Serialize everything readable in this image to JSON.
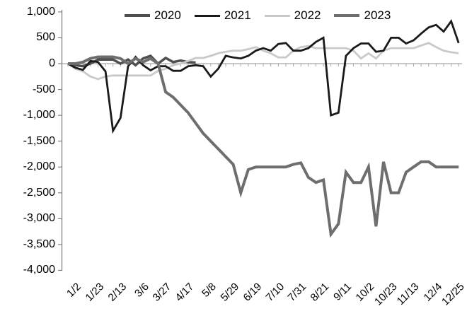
{
  "chart_data": {
    "type": "line",
    "title": "",
    "xlabel": "",
    "ylabel": "",
    "ylim": [
      -4000,
      1000
    ],
    "y_step": 500,
    "grid": false,
    "legend_position": "top",
    "axis_color": "#a6a6a6",
    "tick_color": "#808080",
    "y_tick_labels": [
      "1,000",
      "500",
      "0",
      "-500",
      "-1,000",
      "-1,500",
      "-2,000",
      "-2,500",
      "-3,000",
      "-3,500",
      "-4,000"
    ],
    "x_tick_labels": [
      "1/2",
      "1/23",
      "2/13",
      "3/6",
      "3/27",
      "4/17",
      "5/8",
      "5/29",
      "6/19",
      "7/10",
      "7/31",
      "8/21",
      "9/11",
      "10/2",
      "10/23",
      "11/13",
      "12/4",
      "12/25"
    ],
    "x_label_every_n_points": 3,
    "n_points": 53,
    "series": [
      {
        "name": "2020",
        "color": "#4f4f4f",
        "width": 3.5,
        "values": [
          0,
          -30,
          -50,
          0,
          80,
          80,
          80,
          0,
          80,
          -30,
          100,
          150,
          0,
          110,
          30,
          60,
          30,
          20
        ]
      },
      {
        "name": "2021",
        "color": "#1a1a1a",
        "width": 2.8,
        "values": [
          0,
          -80,
          -120,
          50,
          30,
          -150,
          -1300,
          -1050,
          -50,
          130,
          -30,
          -130,
          -50,
          -50,
          -140,
          -140,
          -50,
          -30,
          -50,
          -250,
          -100,
          150,
          120,
          100,
          150,
          250,
          300,
          250,
          380,
          400,
          250,
          250,
          300,
          420,
          500,
          -1000,
          -950,
          150,
          300,
          390,
          390,
          230,
          250,
          500,
          500,
          390,
          450,
          580,
          700,
          750,
          620,
          820,
          400
        ]
      },
      {
        "name": "2022",
        "color": "#c9c9c9",
        "width": 2.8,
        "values": [
          0,
          -100,
          -150,
          -250,
          -300,
          -250,
          -230,
          -230,
          -230,
          -230,
          -230,
          -230,
          -140,
          -100,
          -30,
          0,
          50,
          110,
          110,
          150,
          200,
          230,
          250,
          250,
          280,
          320,
          250,
          200,
          120,
          120,
          250,
          320,
          340,
          300,
          300,
          300,
          300,
          300,
          250,
          100,
          200,
          100,
          250,
          300,
          300,
          300,
          300,
          350,
          400,
          320,
          250,
          220,
          200
        ]
      },
      {
        "name": "2023",
        "color": "#6e6e6e",
        "width": 4,
        "values": [
          0,
          0,
          30,
          100,
          130,
          130,
          130,
          100,
          0,
          100,
          30,
          100,
          0,
          -550,
          -650,
          -800,
          -950,
          -1150,
          -1350,
          -1500,
          -1650,
          -1800,
          -1950,
          -2500,
          -2050,
          -2000,
          -2000,
          -2000,
          -2000,
          -2000,
          -1950,
          -1920,
          -2200,
          -2300,
          -2250,
          -3300,
          -3100,
          -2100,
          -2300,
          -2300,
          -2000,
          -3150,
          -1900,
          -2500,
          -2500,
          -2100,
          -2000,
          -1900,
          -1900,
          -2000,
          -2000,
          -2000,
          -2000
        ]
      }
    ]
  }
}
